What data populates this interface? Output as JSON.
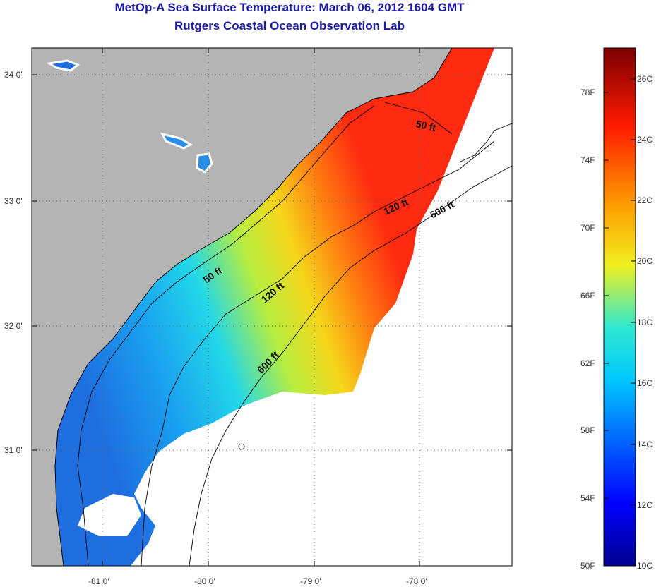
{
  "title": "MetOp-A Sea Surface Temperature:  March 06, 2012 1604 GMT",
  "subtitle": "Rutgers Coastal Ocean Observation Lab",
  "lat_labels": [
    "34 0'",
    "33 0'",
    "32 0'",
    "31 0'"
  ],
  "lon_labels": [
    "-81 0'",
    "-80 0'",
    "-79 0'",
    "-78 0'"
  ],
  "contours": [
    "50 ft",
    "50 ft",
    "120 ft",
    "120 ft",
    "600 ft",
    "600 ft"
  ],
  "colorbar": {
    "fahrenheit": [
      "78F",
      "74F",
      "70F",
      "66F",
      "62F",
      "58F",
      "54F",
      "50F"
    ],
    "celsius": [
      "26C",
      "24C",
      "22C",
      "20C",
      "18C",
      "16C",
      "14C",
      "12C",
      "10C"
    ],
    "range_c": [
      10,
      27
    ]
  },
  "colors": {
    "land": "#b4b4b4",
    "title": "#1a1aa6"
  }
}
